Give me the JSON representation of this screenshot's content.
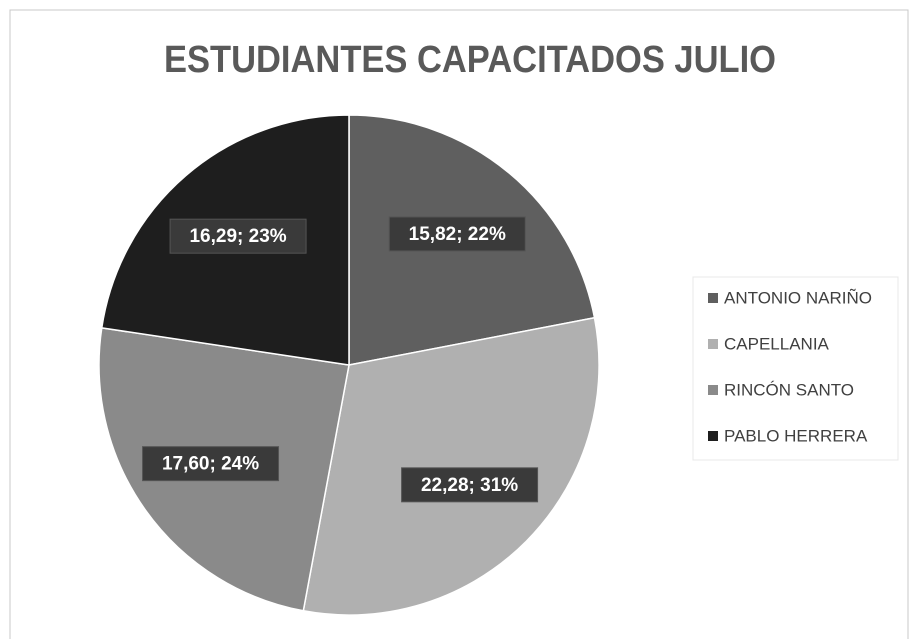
{
  "chart_data": {
    "type": "pie",
    "title": "ESTUDIANTES CAPACITADOS JULIO",
    "categories": [
      "ANTONIO NARIÑO",
      "CAPELLANIA",
      "RINCÓN SANTO",
      "PABLO HERRERA"
    ],
    "values": [
      15.82,
      22.28,
      17.6,
      16.29
    ],
    "value_labels": [
      "15,82; 22%",
      "22,28; 31%",
      "17,60; 24%",
      "16,29; 23%"
    ],
    "colors": [
      "#5f5f5f",
      "#b0b0b0",
      "#8a8a8a",
      "#1e1e1e"
    ],
    "legend": "right"
  }
}
